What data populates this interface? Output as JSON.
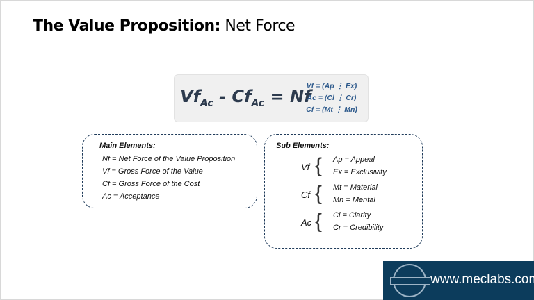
{
  "title": {
    "bold": "The Value Proposition:",
    "normal": " Net Force"
  },
  "formula": {
    "vf": "Vf",
    "ac1": "Ac",
    "minus": " - ",
    "cf": "Cf",
    "ac2": "Ac",
    "eq": " = Nf",
    "defs": [
      "Vf = (Ap ⋮ Ex)",
      "Ac = (Cl ⋮ Cr)",
      "Cf = (Mt ⋮ Mn)"
    ]
  },
  "main_elements": {
    "heading": "Main Elements:",
    "items": [
      "Nf = Net Force of the Value Proposition",
      "Vf = Gross Force of the Value",
      "Cf = Gross Force of the Cost",
      "Ac = Acceptance"
    ]
  },
  "sub_elements": {
    "heading": "Sub Elements:",
    "groups": [
      {
        "symbol": "Vf",
        "items": [
          "Ap = Appeal",
          "Ex = Exclusivity"
        ]
      },
      {
        "symbol": "Cf",
        "items": [
          "Mt = Material",
          "Mn = Mental"
        ]
      },
      {
        "symbol": "Ac",
        "items": [
          "Cl = Clarity",
          "Cr = Credibility"
        ]
      }
    ]
  },
  "logo": {
    "seal_text": "MECLABS INSTITUTE",
    "url": "www.meclabs.com",
    "bg": "#0c3c5c"
  }
}
